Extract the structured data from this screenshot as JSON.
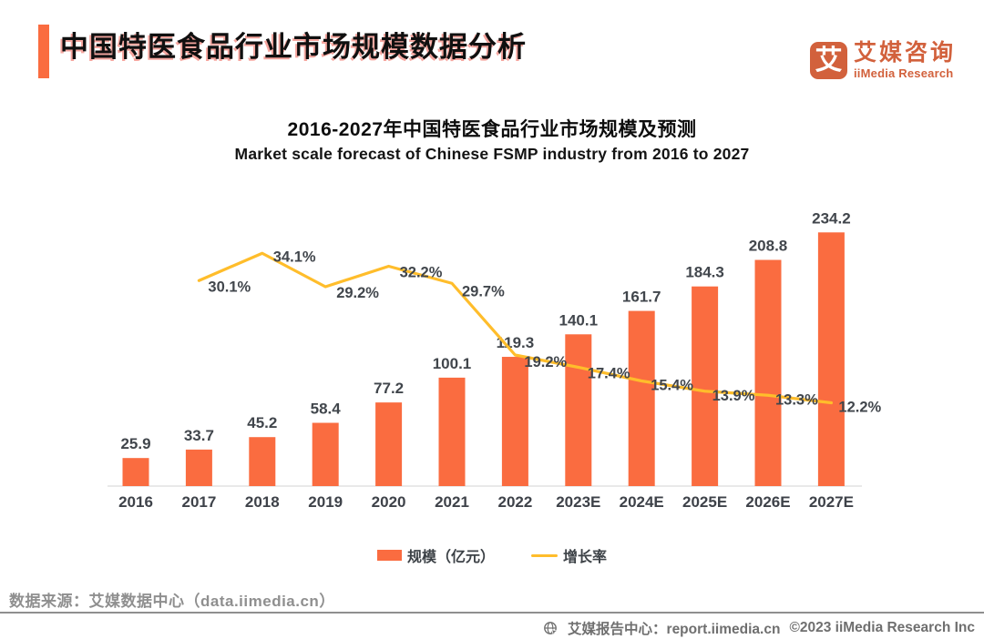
{
  "colors": {
    "accent_orange": "#FA6C40",
    "line_gold": "#FFBD2B",
    "logo_orange": "#D2613C",
    "label_gray": "#41464C",
    "axis_gray": "#E9E9E9"
  },
  "header": {
    "title": "中国特医食品行业市场规模数据分析"
  },
  "logo": {
    "mark_glyph": "艾",
    "name_cn": "艾媒咨询",
    "name_en": "iiMedia Research"
  },
  "chart_data": {
    "type": "combo",
    "title": "2016-2027年中国特医食品行业市场规模及预测",
    "subtitle": "Market scale forecast of Chinese FSMP industry from 2016 to 2027",
    "categories": [
      "2016",
      "2017",
      "2018",
      "2019",
      "2020",
      "2021",
      "2022",
      "2023E",
      "2024E",
      "2025E",
      "2026E",
      "2027E"
    ],
    "series": [
      {
        "name": "规模（亿元）",
        "type": "bar",
        "color": "#FA6C40",
        "values": [
          25.9,
          33.7,
          45.2,
          58.4,
          77.2,
          100.1,
          119.3,
          140.1,
          161.7,
          184.3,
          208.8,
          234.2
        ]
      },
      {
        "name": "增长率",
        "type": "line",
        "color": "#FFBD2B",
        "start_index": 1,
        "values_percent": [
          30.1,
          34.1,
          29.2,
          32.2,
          29.7,
          19.2,
          17.4,
          15.4,
          13.9,
          13.3,
          12.2
        ]
      }
    ],
    "value_labels_shown": true,
    "line_label_suffix": "%",
    "axes": {
      "y_axis": "hidden",
      "gridlines": false,
      "x_axis_line": true
    },
    "legend_position": "bottom-center"
  },
  "legend": {
    "bar_label": "规模（亿元）",
    "line_label": "增长率"
  },
  "source": {
    "text": "数据来源：艾媒数据中心（data.iimedia.cn）"
  },
  "footer": {
    "report_center": "艾媒报告中心：report.iimedia.cn",
    "copyright": "©2023  iiMedia Research Inc"
  }
}
